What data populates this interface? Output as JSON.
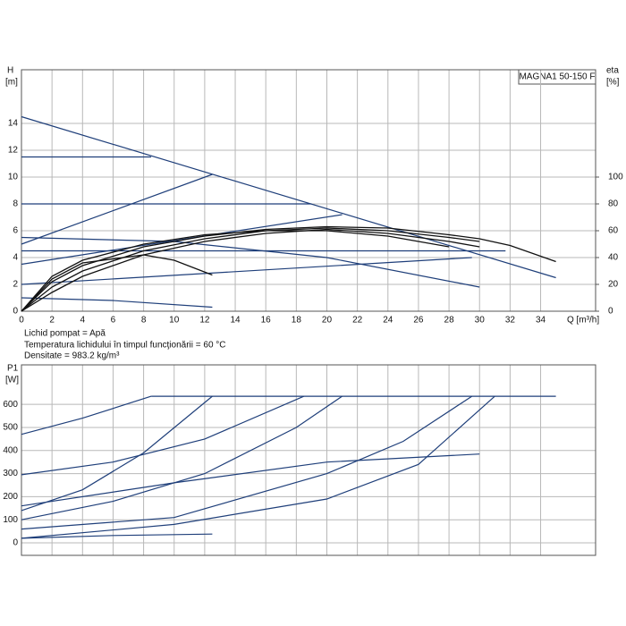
{
  "chart_data": [
    {
      "type": "line",
      "title": "MAGNA1 50-150 F",
      "xlabel": "Q [m³/h]",
      "ylabel": [
        "H",
        "[m]"
      ],
      "y2label": [
        "eta",
        "[%]"
      ],
      "notes": [
        "Lichid pompat = Apă",
        "Temperatura lichidului în timpul funcţionării = 60 °C",
        "Densitate = 983.2 kg/m³"
      ],
      "xlim": [
        0,
        37.6
      ],
      "xticks": [
        0,
        2,
        4,
        6,
        8,
        10,
        12,
        14,
        16,
        18,
        20,
        22,
        24,
        26,
        28,
        30,
        32,
        34
      ],
      "ylim": [
        0,
        18
      ],
      "yticks": [
        0,
        2,
        4,
        6,
        8,
        10,
        12,
        14
      ],
      "y2lim": [
        0,
        180
      ],
      "y2ticks": [
        0,
        20,
        40,
        60,
        80,
        100
      ],
      "grid": true,
      "series": [
        {
          "color": "#1f3f7a",
          "x": [
            0,
            35
          ],
          "values": [
            14.5,
            2.5
          ]
        },
        {
          "color": "#1f3f7a",
          "x": [
            0,
            8.5
          ],
          "values": [
            11.5,
            11.5
          ]
        },
        {
          "color": "#1f3f7a",
          "x": [
            0,
            19
          ],
          "values": [
            8,
            8
          ]
        },
        {
          "color": "#1f3f7a",
          "x": [
            0,
            31.7
          ],
          "values": [
            4.5,
            4.5
          ]
        },
        {
          "color": "#1f3f7a",
          "x": [
            0,
            12.5
          ],
          "values": [
            5,
            10.2
          ]
        },
        {
          "color": "#1f3f7a",
          "x": [
            0,
            21
          ],
          "values": [
            3.5,
            7.2
          ]
        },
        {
          "color": "#1f3f7a",
          "x": [
            0,
            29.5
          ],
          "values": [
            2,
            4
          ]
        },
        {
          "color": "#1f3f7a",
          "x": [
            0,
            10,
            20,
            30
          ],
          "values": [
            5.5,
            5.2,
            4,
            1.8
          ]
        },
        {
          "color": "#1f3f7a",
          "x": [
            0,
            6,
            12.5
          ],
          "values": [
            1,
            0.8,
            0.3
          ]
        },
        {
          "color": "#111111",
          "axis": "y2",
          "x": [
            0,
            2,
            4,
            8,
            12,
            16,
            20,
            24,
            28,
            30,
            32,
            35
          ],
          "values": [
            0,
            22,
            34,
            48,
            56,
            61,
            63,
            62,
            57,
            54,
            49,
            37
          ]
        },
        {
          "color": "#111111",
          "axis": "y2",
          "x": [
            0,
            2,
            4,
            8,
            12,
            16,
            20,
            24,
            28,
            30
          ],
          "values": [
            0,
            18,
            30,
            45,
            54,
            60,
            62,
            60,
            55,
            52
          ]
        },
        {
          "color": "#111111",
          "axis": "y2",
          "x": [
            0,
            2,
            4,
            8,
            12,
            16,
            20,
            24,
            28,
            30
          ],
          "values": [
            0,
            14,
            26,
            42,
            52,
            58,
            61,
            58,
            52,
            48
          ]
        },
        {
          "color": "#111111",
          "axis": "y2",
          "x": [
            0,
            2,
            4,
            8,
            12,
            16,
            20,
            24,
            28
          ],
          "values": [
            0,
            26,
            38,
            50,
            57,
            60,
            60,
            56,
            48
          ]
        },
        {
          "color": "#111111",
          "axis": "y2",
          "x": [
            0,
            2,
            4,
            8,
            10,
            12.5
          ],
          "values": [
            0,
            24,
            36,
            42,
            38,
            27
          ]
        }
      ]
    },
    {
      "type": "line",
      "ylabel": [
        "P1",
        "[W]"
      ],
      "xlim": [
        0,
        37.6
      ],
      "xticks": [
        0,
        2,
        4,
        6,
        8,
        10,
        12,
        14,
        16,
        18,
        20,
        22,
        24,
        26,
        28,
        30,
        32,
        34
      ],
      "ylim": [
        -54,
        771
      ],
      "yticks": [
        0,
        100,
        200,
        300,
        400,
        500,
        600
      ],
      "grid": true,
      "series": [
        {
          "color": "#1f3f7a",
          "x": [
            8.5,
            35
          ],
          "values": [
            635,
            635
          ]
        },
        {
          "color": "#1f3f7a",
          "x": [
            0,
            4,
            8.5
          ],
          "values": [
            470,
            540,
            635
          ]
        },
        {
          "color": "#1f3f7a",
          "x": [
            0,
            6,
            12,
            18.5
          ],
          "values": [
            295,
            350,
            450,
            635
          ]
        },
        {
          "color": "#1f3f7a",
          "x": [
            0,
            4,
            8,
            12.5
          ],
          "values": [
            140,
            230,
            390,
            635
          ]
        },
        {
          "color": "#1f3f7a",
          "x": [
            0,
            6,
            12,
            18,
            21
          ],
          "values": [
            100,
            180,
            300,
            500,
            635
          ]
        },
        {
          "color": "#1f3f7a",
          "x": [
            0,
            10,
            20,
            25,
            29.5
          ],
          "values": [
            60,
            110,
            300,
            440,
            635
          ]
        },
        {
          "color": "#1f3f7a",
          "x": [
            0,
            10,
            20,
            26,
            31
          ],
          "values": [
            20,
            80,
            190,
            340,
            635
          ]
        },
        {
          "color": "#1f3f7a",
          "x": [
            0,
            10,
            20,
            30
          ],
          "values": [
            160,
            260,
            350,
            385
          ]
        },
        {
          "color": "#1f3f7a",
          "x": [
            0,
            6,
            12.5
          ],
          "values": [
            20,
            32,
            38
          ]
        }
      ]
    }
  ]
}
